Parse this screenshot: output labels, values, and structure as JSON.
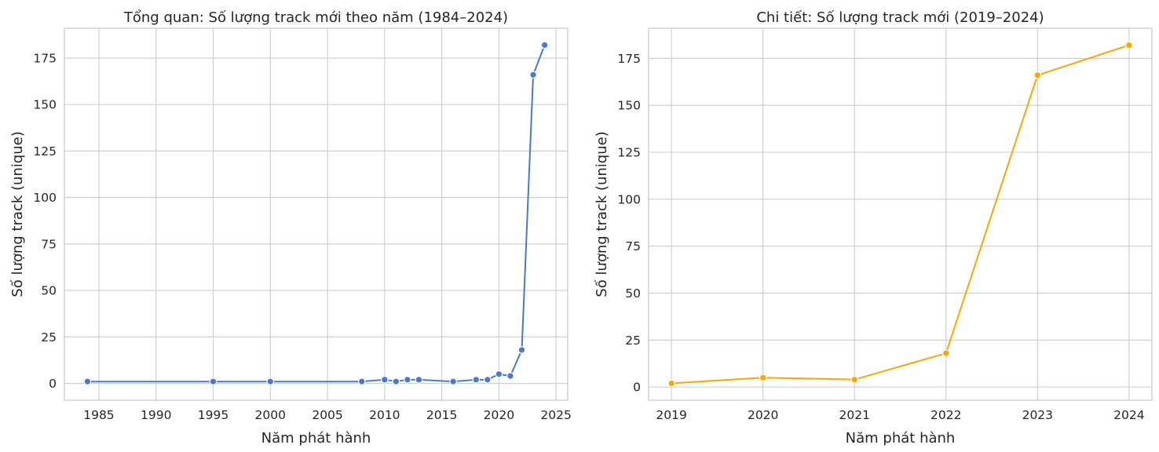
{
  "chart_data": [
    {
      "type": "line",
      "title": "Tổng quan: Số lượng track mới theo năm (1984–2024)",
      "xlabel": "Năm phát hành",
      "ylabel": "Số lượng track (unique)",
      "xlim": [
        1981.98,
        2026.02
      ],
      "ylim": [
        -9.05,
        191.05
      ],
      "x_ticks": [
        1985,
        1990,
        1995,
        2000,
        2005,
        2010,
        2015,
        2020,
        2025
      ],
      "y_ticks": [
        0,
        25,
        50,
        75,
        100,
        125,
        150,
        175
      ],
      "grid": true,
      "color": "#4878cf",
      "marker": "circle",
      "x": [
        1984,
        1995,
        2000,
        2008,
        2010,
        2011,
        2012,
        2013,
        2016,
        2018,
        2019,
        2020,
        2021,
        2022,
        2023,
        2024
      ],
      "y": [
        1,
        1,
        1,
        1,
        2,
        1,
        2,
        2,
        1,
        2,
        2,
        5,
        4,
        18,
        166,
        182
      ]
    },
    {
      "type": "line",
      "title": "Chi tiết: Số lượng track mới (2019–2024)",
      "xlabel": "Năm phát hành",
      "ylabel": "Số lượng track (unique)",
      "xlim": [
        2018.75,
        2024.25
      ],
      "ylim": [
        -7.0,
        191.0
      ],
      "x_ticks": [
        2019,
        2020,
        2021,
        2022,
        2023,
        2024
      ],
      "y_ticks": [
        0,
        25,
        50,
        75,
        100,
        125,
        150,
        175
      ],
      "grid": true,
      "color": "#ffa500",
      "marker": "circle",
      "x": [
        2019,
        2020,
        2021,
        2022,
        2023,
        2024
      ],
      "y": [
        2,
        5,
        4,
        18,
        166,
        182
      ]
    }
  ]
}
